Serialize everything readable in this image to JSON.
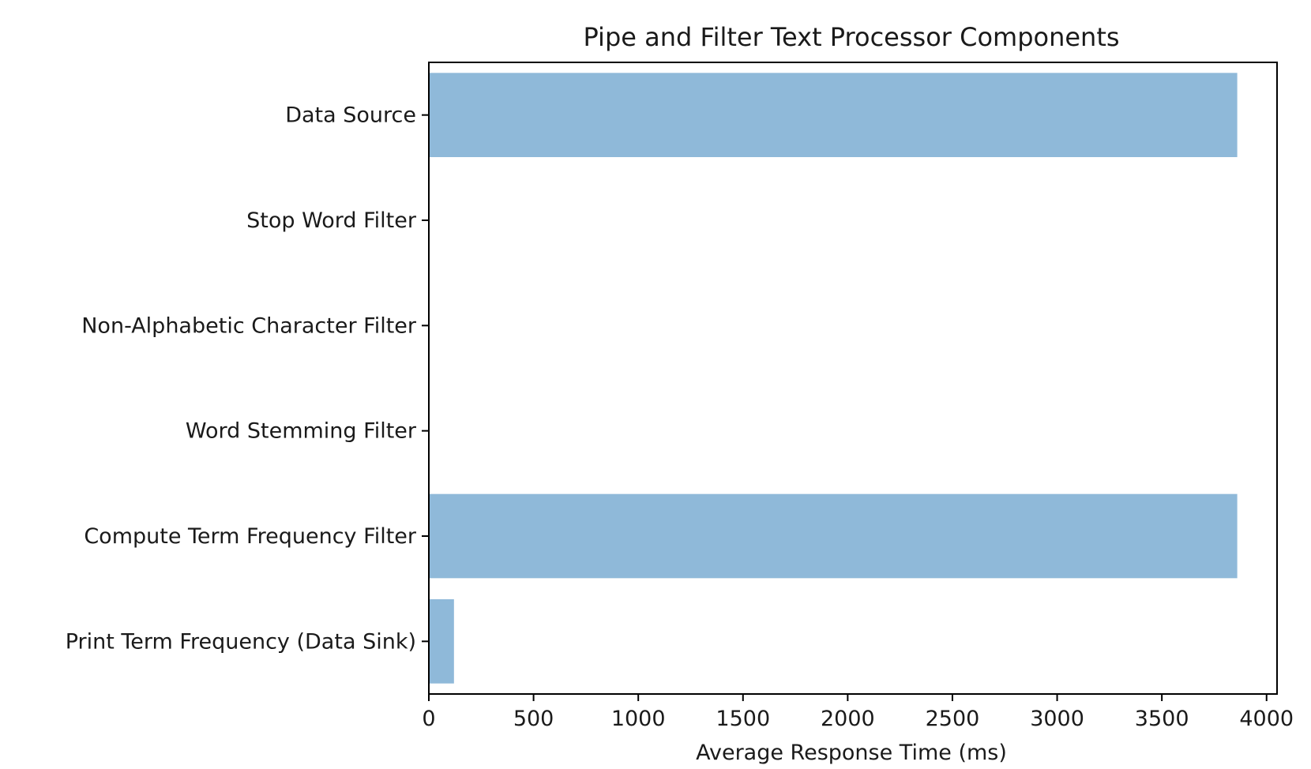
{
  "chart_data": {
    "type": "bar",
    "orientation": "horizontal",
    "title": "Pipe and Filter Text Processor Components",
    "xlabel": "Average Response Time (ms)",
    "ylabel": "",
    "categories": [
      "Data Source",
      "Stop Word Filter",
      "Non-Alphabetic Character Filter",
      "Word Stemming Filter",
      "Compute Term Frequency Filter",
      "Print Term Frequency (Data Sink)"
    ],
    "values": [
      3860,
      0,
      0,
      0,
      3860,
      120
    ],
    "xlim": [
      0,
      4050
    ],
    "xticks": [
      "0",
      "500",
      "1000",
      "1500",
      "2000",
      "2500",
      "3000",
      "3500",
      "4000"
    ],
    "bar_color": "#8fb9d9",
    "grid": false,
    "legend": "none"
  }
}
